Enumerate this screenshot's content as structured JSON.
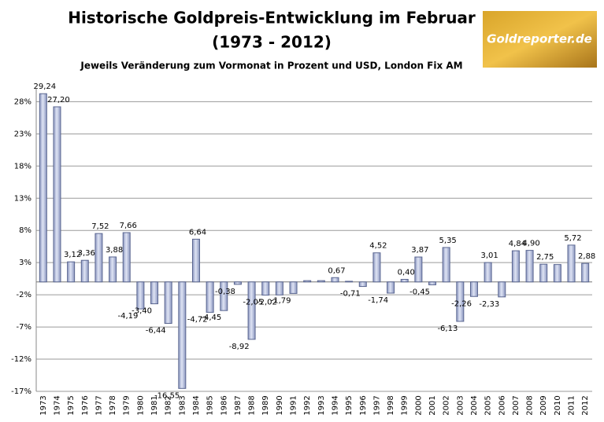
{
  "logo": "Goldreporter.de",
  "chart_data": {
    "type": "bar",
    "title": "Historische Goldpreis-Entwicklung im Februar",
    "title_period": "(1973 - 2012)",
    "subtitle": "Jeweils Veränderung zum Vormonat in Prozent und USD, London Fix AM",
    "categories": [
      "1973",
      "1974",
      "1975",
      "1976",
      "1977",
      "1978",
      "1979",
      "1980",
      "1981",
      "1982",
      "1983",
      "1984",
      "1985",
      "1986",
      "1987",
      "1988",
      "1989",
      "1990",
      "1991",
      "1992",
      "1993",
      "1994",
      "1995",
      "1996",
      "1997",
      "1998",
      "1999",
      "2000",
      "2001",
      "2002",
      "2003",
      "2004",
      "2005",
      "2006",
      "2007",
      "2008",
      "2009",
      "2010",
      "2011",
      "2012"
    ],
    "values": [
      29.24,
      27.2,
      3.12,
      3.36,
      7.52,
      3.88,
      7.66,
      -4.19,
      -3.4,
      -6.44,
      -16.55,
      6.64,
      -4.72,
      -4.45,
      -0.38,
      -8.92,
      -2.05,
      -2.02,
      -1.79,
      0.2,
      0.2,
      0.67,
      0.1,
      -0.71,
      4.52,
      -1.74,
      0.4,
      3.87,
      -0.45,
      5.35,
      -6.13,
      -2.26,
      3.01,
      -2.33,
      4.84,
      4.9,
      2.75,
      2.7,
      5.72,
      2.88
    ],
    "value_labels": [
      "29,24",
      "27,20",
      "3,12",
      "3,36",
      "7,52",
      "3,88",
      "7,66",
      "-4,19",
      "-3,40",
      "-6,44",
      "-16,55",
      "6,64",
      "-4,72",
      "-4,45",
      "-0,38",
      "-8,92",
      "-2,05",
      "-2,02",
      "-1,79",
      null,
      null,
      "0,67",
      null,
      "-0,71",
      "4,52",
      "-1,74",
      "0,40",
      "3,87",
      "-0,45",
      "5,35",
      "-6,13",
      "-2,26",
      "3,01",
      "-2,33",
      "4,84",
      "4,90",
      "2,75",
      null,
      "5,72",
      "2,88"
    ],
    "color": "#b8c2e0",
    "ylim": [
      -17,
      30
    ],
    "yticks": [
      {
        "value": -17,
        "label": "-17%"
      },
      {
        "value": -12,
        "label": "-12%"
      },
      {
        "value": -7,
        "label": "-7%"
      },
      {
        "value": -2,
        "label": "-2%"
      },
      {
        "value": 3,
        "label": "3%"
      },
      {
        "value": 8,
        "label": "8%"
      },
      {
        "value": 13,
        "label": "13%"
      },
      {
        "value": 18,
        "label": "18%"
      },
      {
        "value": 23,
        "label": "23%"
      },
      {
        "value": 28,
        "label": "28%"
      }
    ],
    "grid": true
  }
}
